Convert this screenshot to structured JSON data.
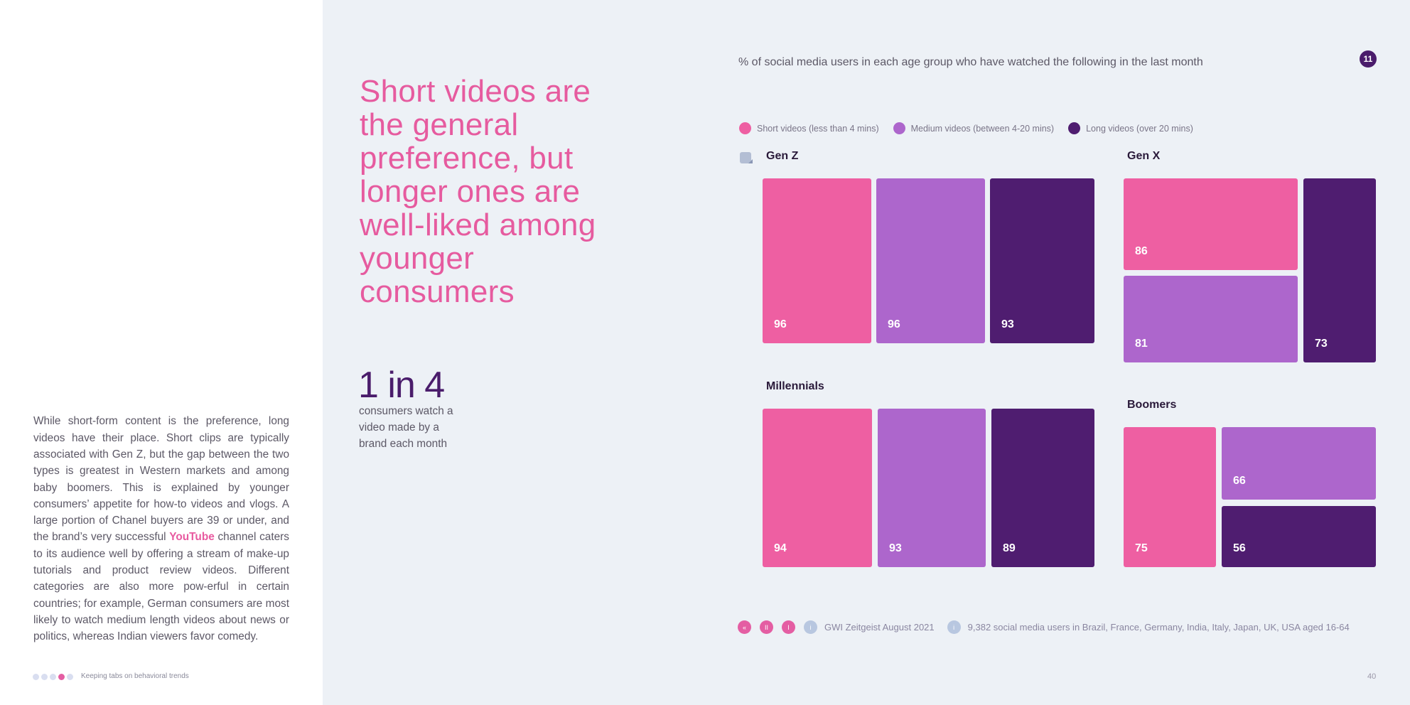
{
  "left": {
    "body_parts": [
      "While short-form content is the preference, long videos have their place. Short clips are typically associated with Gen Z, but the gap between the two types is greatest in Western markets and among baby boomers. This is explained by younger consumers’ appetite for how-to videos and vlogs. A large portion of Chanel buyers are 39 or under, and the brand’s very successful ",
      "YouTube",
      " channel caters to its audience well by offering a stream of make-up tutorials and product review videos. Different categories are also more pow-erful in certain countries; for example, German consumers are most likely to watch medium length videos about news or politics, whereas Indian viewers favor comedy."
    ],
    "footer_label": "Keeping tabs on behavioral trends"
  },
  "headline": "Short videos are the general preference, but longer ones are well-liked among younger consumers",
  "stat": {
    "number": "1 in 4",
    "description": "consumers  watch a video made by a brand each month"
  },
  "page_badge": "11",
  "chart_data": {
    "type": "bar",
    "title": "% of social media users in each age group who have watched the following in the last month",
    "series_names": [
      "Short videos (less than 4 mins)",
      "Medium videos (between 4-20 mins)",
      "Long videos (over 20 mins)"
    ],
    "colors": [
      "#ee5fa2",
      "#ad66cc",
      "#4f1d70"
    ],
    "groups": [
      {
        "name": "Gen Z",
        "values": [
          96,
          96,
          93
        ]
      },
      {
        "name": "Gen X",
        "values": [
          86,
          81,
          73
        ]
      },
      {
        "name": "Millennials",
        "values": [
          94,
          93,
          89
        ]
      },
      {
        "name": "Boomers",
        "values": [
          75,
          66,
          56
        ]
      }
    ]
  },
  "footer": {
    "nav": [
      "«",
      "II",
      "I"
    ],
    "source": "GWI Zeitgeist August 2021",
    "base": "9,382 social media users in Brazil, France, Germany, India, Italy, Japan, UK, USA aged 16-64",
    "page_number": "40"
  },
  "icons": {
    "info": "info-icon",
    "menu": "menu-icon"
  }
}
